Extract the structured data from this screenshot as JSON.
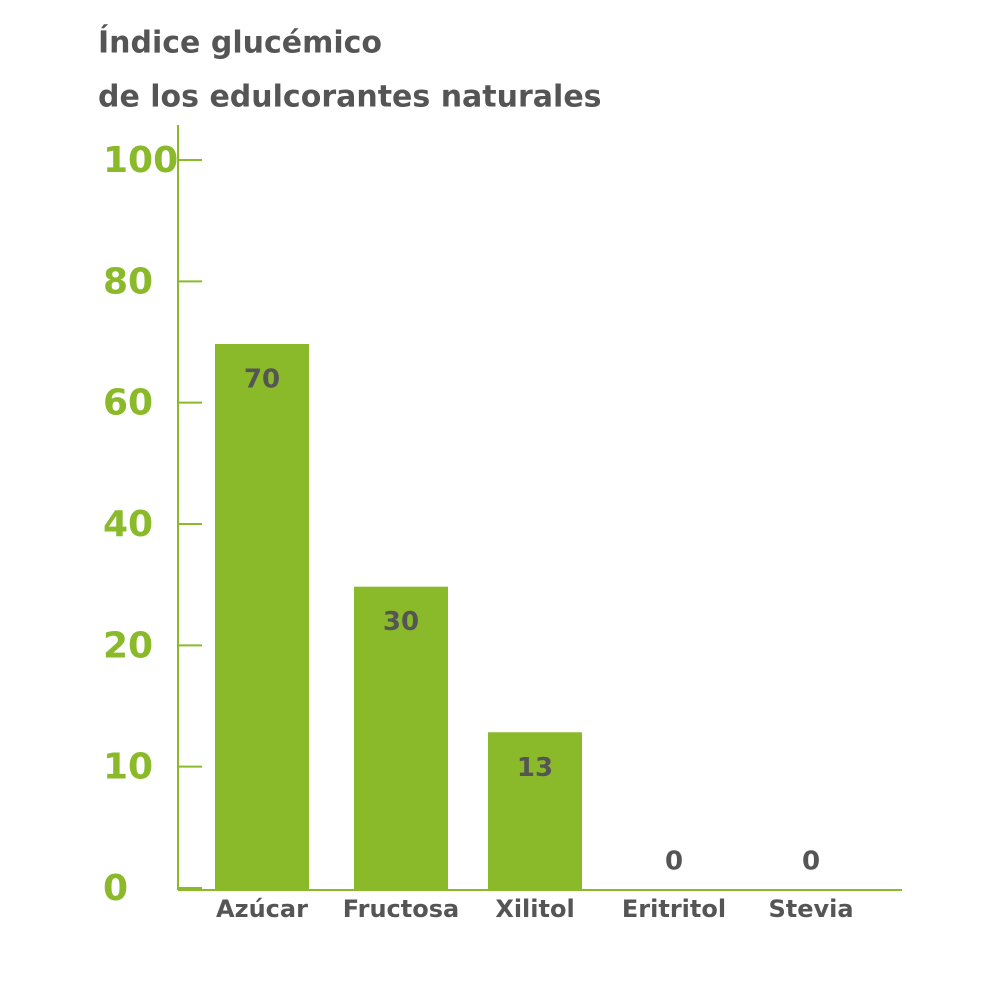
{
  "chart_data": {
    "type": "bar",
    "title": [
      "Índice glucémico",
      "de los edulcorantes naturales"
    ],
    "categories": [
      "Azúcar",
      "Fructosa",
      "Xilitol",
      "Eritritol",
      "Stevia"
    ],
    "values": [
      70,
      30,
      13,
      0,
      0
    ],
    "color": "#8aba2a",
    "ylim": [
      0,
      100
    ],
    "yticks": [
      0,
      10,
      20,
      40,
      60,
      80,
      100
    ]
  }
}
